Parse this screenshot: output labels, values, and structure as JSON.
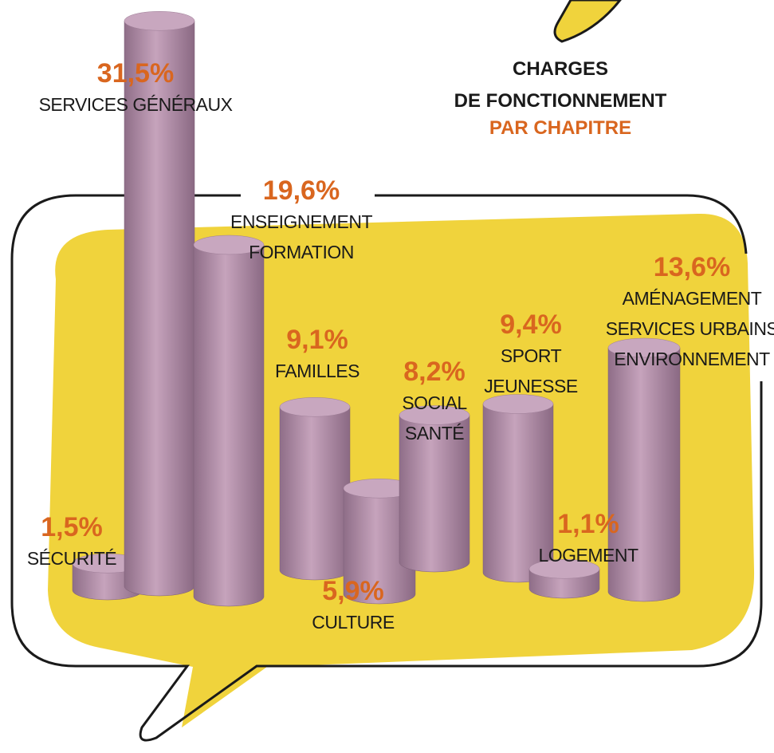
{
  "chart_data": {
    "type": "bar",
    "title": [
      "CHARGES",
      "DE FONCTIONNEMENT"
    ],
    "subtitle": "PAR CHAPITRE",
    "categories": [
      [
        "SÉCURITÉ"
      ],
      [
        "SERVICES GÉNÉRAUX"
      ],
      [
        "ENSEIGNEMENT",
        "FORMATION"
      ],
      [
        "FAMILLES"
      ],
      [
        "CULTURE"
      ],
      [
        "SOCIAL",
        "SANTÉ"
      ],
      [
        "SPORT",
        "JEUNESSE"
      ],
      [
        "LOGEMENT"
      ],
      [
        "AMÉNAGEMENT",
        "SERVICES URBAINS",
        "ENVIRONNEMENT"
      ]
    ],
    "values": [
      1.5,
      31.5,
      19.6,
      9.1,
      5.9,
      8.2,
      9.4,
      1.1,
      13.6
    ],
    "value_labels": [
      "1,5%",
      "31,5%",
      "19,6%",
      "9,1%",
      "5,9%",
      "8,2%",
      "9,4%",
      "1,1%",
      "13,6%"
    ],
    "color": "#b996b0"
  }
}
